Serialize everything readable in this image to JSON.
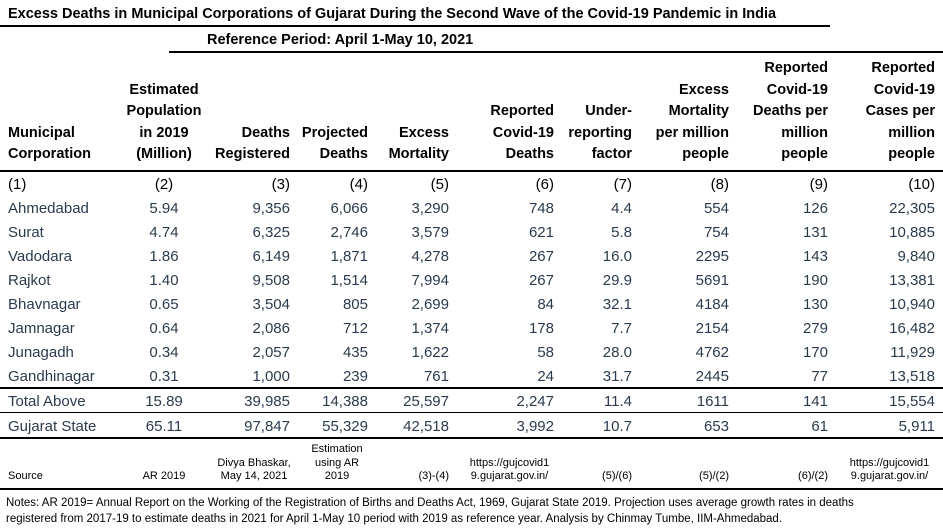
{
  "title": "Excess Deaths in Municipal Corporations of Gujarat During the Second Wave of the Covid-19 Pandemic in India",
  "subtitle": "Reference Period: April 1-May 10, 2021",
  "colors": {
    "data_text": "#2b3a4d",
    "heading_text": "#000000",
    "rule": "#000000"
  },
  "table": {
    "columns": [
      {
        "num": "(1)",
        "header": "Municipal\nCorporation"
      },
      {
        "num": "(2)",
        "header": "Estimated\nPopulation\nin 2019\n(Million)"
      },
      {
        "num": "(3)",
        "header": "Deaths\nRegistered"
      },
      {
        "num": "(4)",
        "header": "Projected\nDeaths"
      },
      {
        "num": "(5)",
        "header": "Excess\nMortality"
      },
      {
        "num": "(6)",
        "header": "Reported\nCovid-19\nDeaths"
      },
      {
        "num": "(7)",
        "header": "Under-\nreporting\nfactor"
      },
      {
        "num": "(8)",
        "header": "Excess\nMortality\nper million\npeople"
      },
      {
        "num": "(9)",
        "header": "Reported\nCovid-19\nDeaths per\nmillion\npeople"
      },
      {
        "num": "(10)",
        "header": "Reported\nCovid-19\nCases per\nmillion\npeople"
      }
    ],
    "rows": [
      [
        "Ahmedabad",
        "5.94",
        "9,356",
        "6,066",
        "3,290",
        "748",
        "4.4",
        "554",
        "126",
        "22,305"
      ],
      [
        "Surat",
        "4.74",
        "6,325",
        "2,746",
        "3,579",
        "621",
        "5.8",
        "754",
        "131",
        "10,885"
      ],
      [
        "Vadodara",
        "1.86",
        "6,149",
        "1,871",
        "4,278",
        "267",
        "16.0",
        "2295",
        "143",
        "9,840"
      ],
      [
        "Rajkot",
        "1.40",
        "9,508",
        "1,514",
        "7,994",
        "267",
        "29.9",
        "5691",
        "190",
        "13,381"
      ],
      [
        "Bhavnagar",
        "0.65",
        "3,504",
        "805",
        "2,699",
        "84",
        "32.1",
        "4184",
        "130",
        "10,940"
      ],
      [
        "Jamnagar",
        "0.64",
        "2,086",
        "712",
        "1,374",
        "178",
        "7.7",
        "2154",
        "279",
        "16,482"
      ],
      [
        "Junagadh",
        "0.34",
        "2,057",
        "435",
        "1,622",
        "58",
        "28.0",
        "4762",
        "170",
        "11,929"
      ],
      [
        "Gandhinagar",
        "0.31",
        "1,000",
        "239",
        "761",
        "24",
        "31.7",
        "2445",
        "77",
        "13,518"
      ]
    ],
    "total_row": [
      "Total Above",
      "15.89",
      "39,985",
      "14,388",
      "25,597",
      "2,247",
      "11.4",
      "1611",
      "141",
      "15,554"
    ],
    "state_row": [
      "Gujarat State",
      "65.11",
      "97,847",
      "55,329",
      "42,518",
      "3,992",
      "10.7",
      "653",
      "61",
      "5,911"
    ],
    "source_row": [
      "Source",
      "AR 2019",
      "Divya Bhaskar,\nMay 14, 2021",
      "Estimation\nusing AR\n2019",
      "(3)-(4)",
      "https://gujcovid1\n9.gujarat.gov.in/",
      "(5)/(6)",
      "(5)/(2)",
      "(6)/(2)",
      "https://gujcovid1\n9.gujarat.gov.in/"
    ]
  },
  "notes": "Notes: AR 2019= Annual Report on the Working of the Registration of Births and Deaths Act, 1969, Gujarat State 2019. Projection uses average growth rates in deaths\nregistered from 2017-19 to estimate deaths in 2021 for April 1-May 10 period with 2019 as reference year. Analysis by Chinmay Tumbe, IIM-Ahmedabad."
}
